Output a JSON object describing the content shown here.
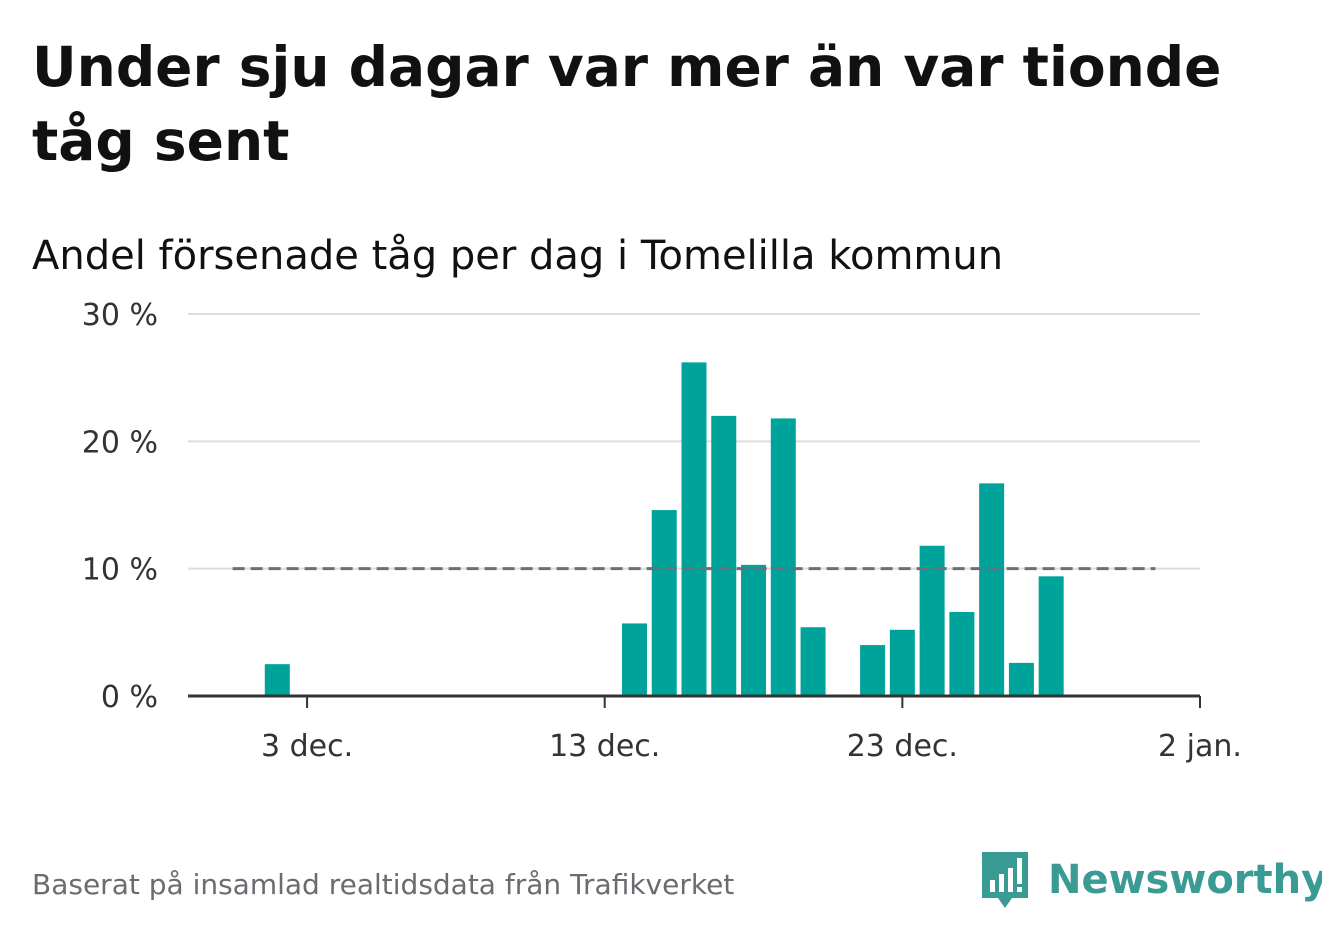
{
  "title": "Under sju dagar var mer än var tionde tåg sent",
  "subtitle": "Andel försenade tåg per dag i Tomelilla kommun",
  "footer": "Baserat på insamlad realtidsdata från Trafikverket",
  "logo": {
    "text": "Newsworthy",
    "icon": "newsworthy-logo-icon",
    "color": "#3a9a94"
  },
  "colors": {
    "bar": "#00a39a",
    "reference_line": "#6e6e78",
    "grid": "#dcdcdc",
    "axis": "#333333"
  },
  "chart_data": {
    "type": "bar",
    "title": "Andel försenade tåg per dag i Tomelilla kommun",
    "xlabel": "",
    "ylabel": "",
    "y_unit": "%",
    "ylim": [
      0,
      30
    ],
    "yticks": [
      0,
      10,
      20,
      30
    ],
    "ytick_labels": [
      "0 %",
      "10 %",
      "20 %",
      "30 %"
    ],
    "xlim": [
      "2021-11-29",
      "2022-01-02"
    ],
    "xticks": [
      "2021-12-03",
      "2021-12-13",
      "2021-12-23",
      "2022-01-02"
    ],
    "xtick_labels": [
      "3 dec.",
      "13 dec.",
      "23 dec.",
      "2 jan."
    ],
    "grid": true,
    "reference_line": {
      "value": 10,
      "style": "dashed",
      "from": "2021-12-01",
      "to": "2021-12-31"
    },
    "series": [
      {
        "x": [
          "2021-12-02",
          "2021-12-03",
          "2021-12-04",
          "2021-12-05",
          "2021-12-06",
          "2021-12-07",
          "2021-12-08",
          "2021-12-09",
          "2021-12-10",
          "2021-12-11",
          "2021-12-12",
          "2021-12-13",
          "2021-12-14",
          "2021-12-15",
          "2021-12-16",
          "2021-12-17",
          "2021-12-18",
          "2021-12-19",
          "2021-12-20",
          "2021-12-21",
          "2021-12-22",
          "2021-12-23",
          "2021-12-24",
          "2021-12-25",
          "2021-12-26",
          "2021-12-27",
          "2021-12-28",
          "2021-12-29",
          "2021-12-30"
        ],
        "values": [
          2.5,
          0,
          0,
          0,
          0,
          0,
          0,
          0,
          0,
          0,
          0,
          0,
          5.7,
          14.6,
          26.2,
          22.0,
          10.3,
          21.8,
          5.4,
          0,
          4.0,
          5.2,
          11.8,
          6.6,
          16.7,
          2.6,
          9.4,
          0,
          0
        ]
      }
    ]
  }
}
